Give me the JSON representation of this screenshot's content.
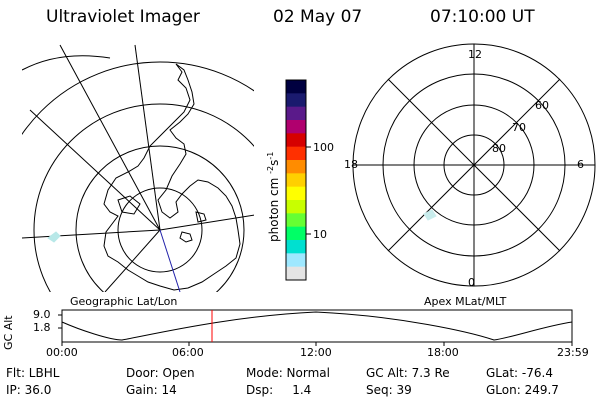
{
  "header": {
    "instrument": "Ultraviolet Imager",
    "date": "02 May 07",
    "time": "07:10:00 UT"
  },
  "colorbar": {
    "unit_label": "photon cm",
    "exp1": "-2",
    "unit_mid": "s",
    "exp2": "-1",
    "ticks": [
      "100",
      "10"
    ],
    "colors": [
      "#000040",
      "#1a1a6e",
      "#5a1a8a",
      "#b0006e",
      "#d60000",
      "#ff3000",
      "#ff8c00",
      "#ffd000",
      "#ffff00",
      "#c8ff00",
      "#66ff33",
      "#00ff66",
      "#00e0d0",
      "#9ee8ff",
      "#e4e4e4"
    ]
  },
  "geo_map": {
    "label": "Geographic Lat/Lon"
  },
  "apex_map": {
    "label": "Apex MLat/MLT",
    "mlt_labels": {
      "top": "12",
      "left": "18",
      "right": "6",
      "bottom": "0"
    },
    "lat_labels": [
      "60",
      "70",
      "80"
    ]
  },
  "altitude_plot": {
    "ylabel": "GC Alt",
    "yticks": [
      "9.0",
      "1.8"
    ],
    "xticks": [
      "00:00",
      "06:00",
      "12:00",
      "18:00",
      "23:59"
    ],
    "marker_color": "#ff0000"
  },
  "info": {
    "flt": "Flt: LBHL",
    "ip": "IP: 36.0",
    "door": "Door: Open",
    "gain": "Gain: 14",
    "mode": "Mode: Normal",
    "dsp": "Dsp:     1.4",
    "gcalt": "GC Alt: 7.3 Re",
    "seq": "Seq: 39",
    "glat": "GLat: -76.4",
    "glon": "GLon: 249.7"
  }
}
